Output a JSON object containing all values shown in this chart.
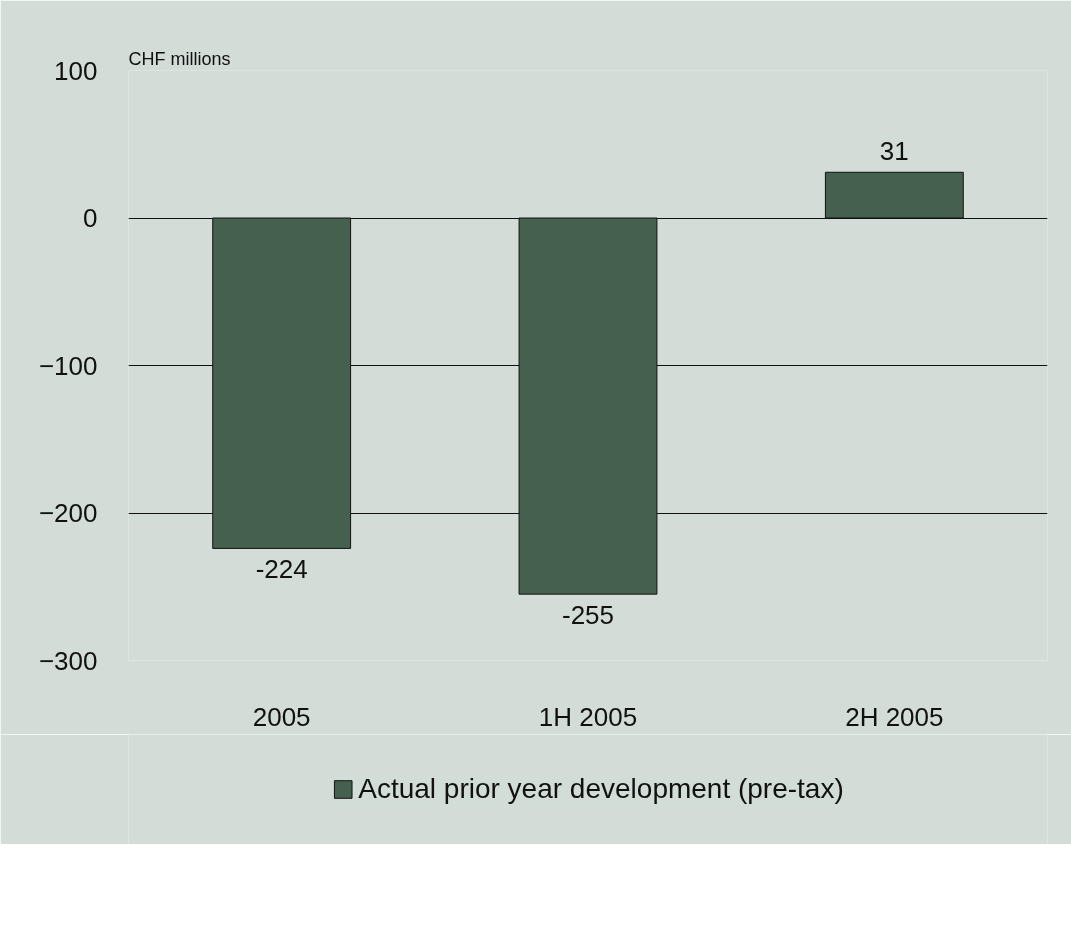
{
  "chart_data": {
    "type": "bar",
    "ylabel": "CHF millions",
    "categories": [
      "2005",
      "1H 2005",
      "2H 2005"
    ],
    "series": [
      {
        "name": "Actual prior year development (pre-tax)",
        "color": "#46604f",
        "values": [
          -224,
          -255,
          31
        ]
      }
    ],
    "ylim": [
      -300,
      100
    ],
    "yticks": [
      -300,
      -200,
      -100,
      0,
      100
    ],
    "grid": "y",
    "legend": "bottom",
    "data_labels": true
  }
}
